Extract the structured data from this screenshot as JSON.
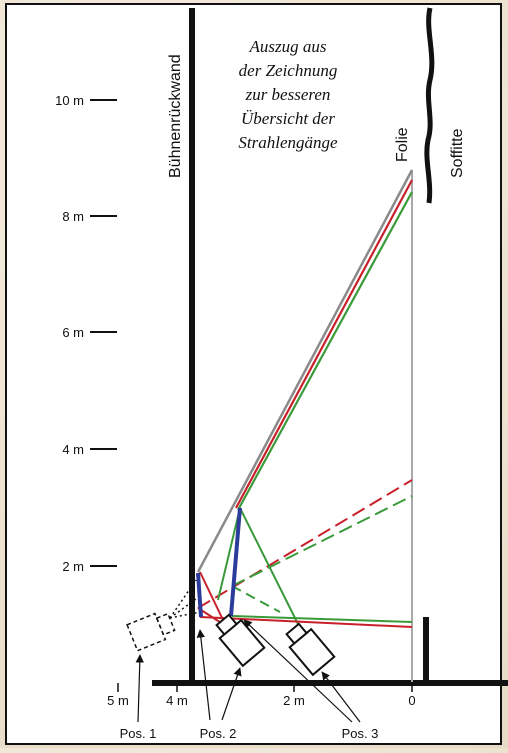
{
  "caption_lines": [
    "Auszug aus",
    "der Zeichnung",
    "zur besseren",
    "Übersicht der",
    "Strahlengänge"
  ],
  "labels": {
    "back_wall": "Bühnenrückwand",
    "foil": "Folie",
    "soffit": "Soffitte"
  },
  "y_ticks": [
    "2 m",
    "4 m",
    "6 m",
    "8 m",
    "10 m"
  ],
  "x_ticks": [
    "5 m",
    "4 m",
    "2 m",
    "0"
  ],
  "positions": [
    "Pos. 1",
    "Pos. 2",
    "Pos. 3"
  ],
  "colors": {
    "grey_ray": "#8a8a8a",
    "red_ray": "#c8202a",
    "green_ray": "#3a9a3a",
    "mirror": "#2c3c9a",
    "foil": "#a8a8a8"
  }
}
